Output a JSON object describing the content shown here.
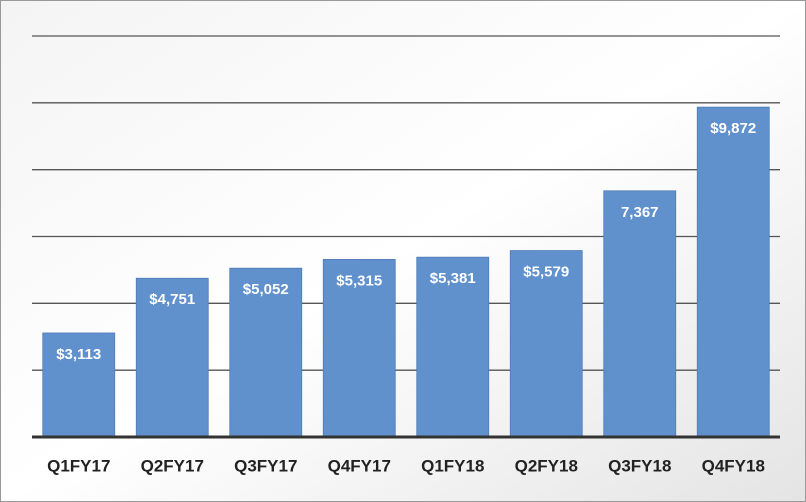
{
  "chart_data": {
    "type": "bar",
    "categories": [
      "Q1FY17",
      "Q2FY17",
      "Q3FY17",
      "Q4FY17",
      "Q1FY18",
      "Q2FY18",
      "Q3FY18",
      "Q4FY18"
    ],
    "values": [
      3113,
      4751,
      5052,
      5315,
      5381,
      5579,
      7367,
      9872
    ],
    "value_labels": [
      "$3,113",
      "$4,751",
      "$5,052",
      "$5,315",
      "$5,381",
      "$5,579",
      "7,367",
      "$9,872"
    ],
    "color": "#6191cd",
    "ylim": [
      0,
      12000
    ],
    "yticks": [
      0,
      2000,
      4000,
      6000,
      8000,
      10000,
      12000
    ],
    "grid": true
  }
}
